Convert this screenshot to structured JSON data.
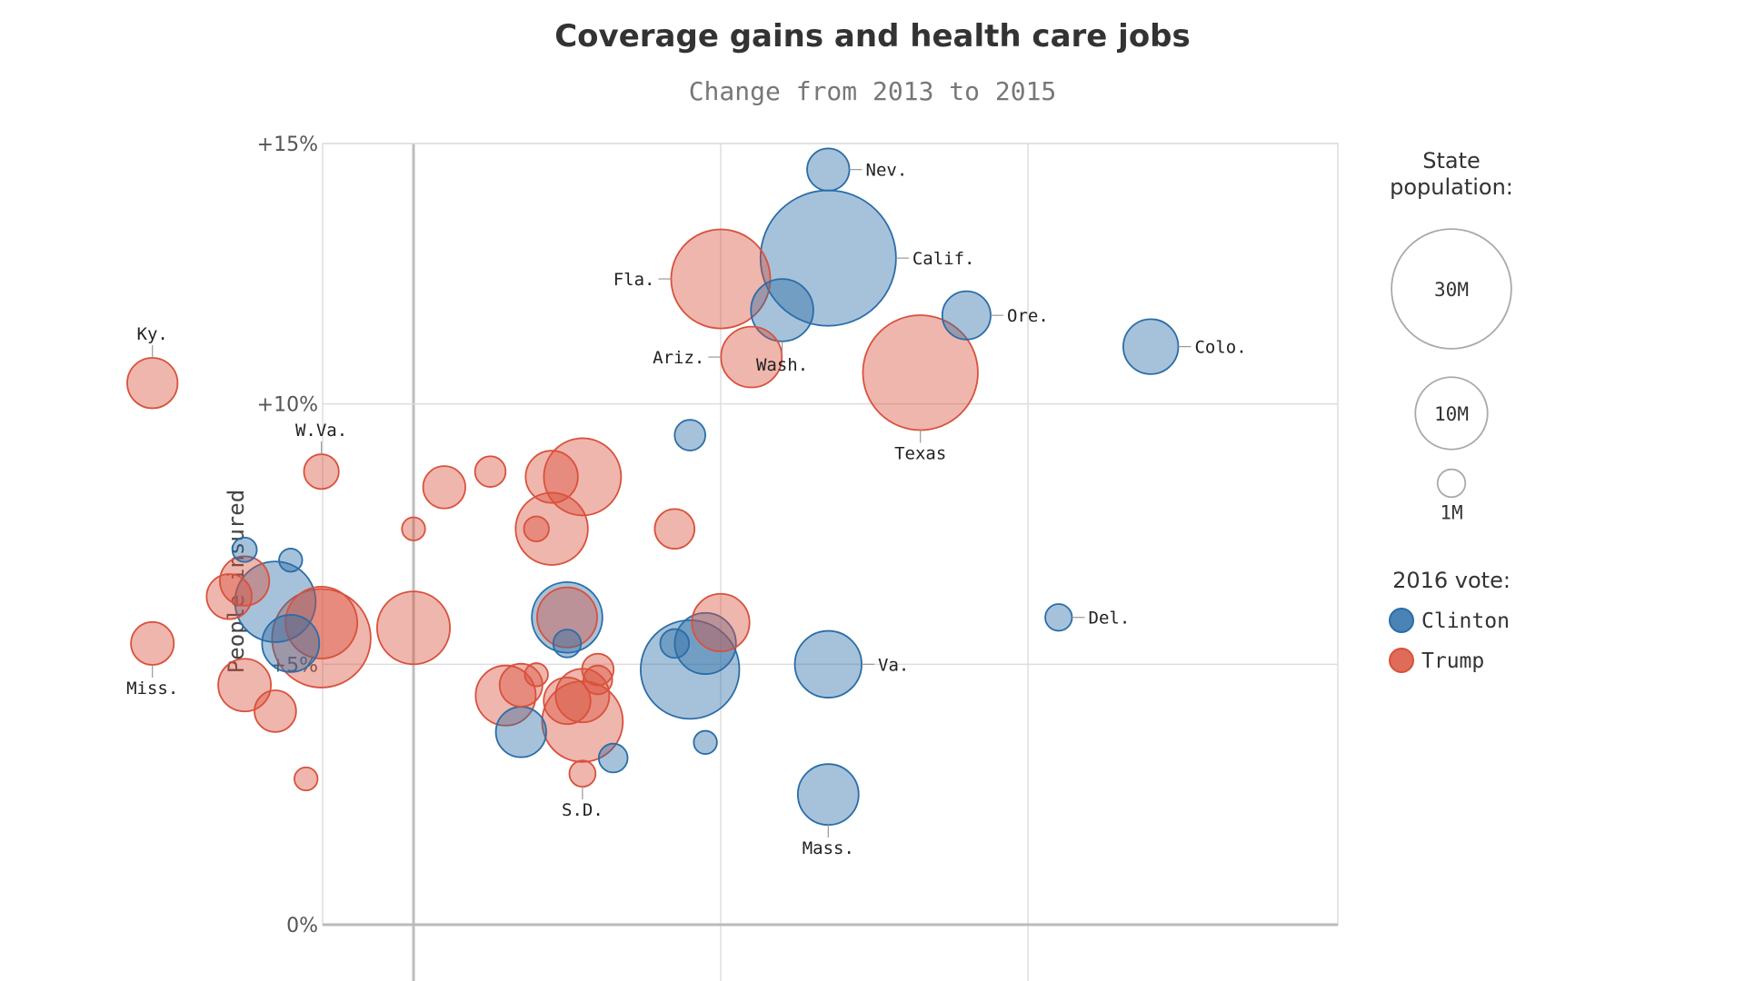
{
  "chart_data": {
    "type": "scatter",
    "title": "Coverage gains and health care jobs",
    "subtitle": "Change from 2013 to 2015",
    "xlabel": "",
    "ylabel": "People insured",
    "ylim": [
      0,
      15
    ],
    "y_ticks": [
      {
        "value": 0,
        "label": "0%"
      },
      {
        "value": 5,
        "label": "+5%"
      },
      {
        "value": 10,
        "label": "+10%"
      },
      {
        "value": 15,
        "label": "+15%"
      }
    ],
    "grid": true,
    "colors": {
      "Clinton": "#2a6da8",
      "Trump": "#d9513c"
    },
    "legend": {
      "size_title_line1": "State",
      "size_title_line2": "population:",
      "sizes": [
        {
          "label": "30M",
          "pop": 30
        },
        {
          "label": "10M",
          "pop": 10
        },
        {
          "label": "1M",
          "pop": 1
        }
      ],
      "vote_title": "2016 vote:",
      "vote_items": [
        {
          "label": "Clinton",
          "vote": "Clinton"
        },
        {
          "label": "Trump",
          "vote": "Trump"
        }
      ]
    },
    "points": [
      {
        "x": 1.35,
        "y": 14.5,
        "pop": 2.9,
        "vote": "Clinton",
        "label": "Nev."
      },
      {
        "x": 1.35,
        "y": 12.8,
        "pop": 39,
        "vote": "Clinton",
        "label": "Calif."
      },
      {
        "x": 1.0,
        "y": 12.4,
        "pop": 20,
        "vote": "Trump",
        "label": "Fla."
      },
      {
        "x": 1.2,
        "y": 11.8,
        "pop": 7.2,
        "vote": "Clinton",
        "label": "Wash."
      },
      {
        "x": 1.1,
        "y": 10.9,
        "pop": 6.8,
        "vote": "Trump",
        "label": "Ariz."
      },
      {
        "x": 1.8,
        "y": 11.7,
        "pop": 4.0,
        "vote": "Clinton",
        "label": "Ore."
      },
      {
        "x": 1.65,
        "y": 10.6,
        "pop": 27.5,
        "vote": "Trump",
        "label": "Texas"
      },
      {
        "x": 2.4,
        "y": 11.1,
        "pop": 5.4,
        "vote": "Clinton",
        "label": "Colo."
      },
      {
        "x": -0.85,
        "y": 10.4,
        "pop": 4.4,
        "vote": "Trump",
        "label": "Ky."
      },
      {
        "x": -0.3,
        "y": 8.7,
        "pop": 1.8,
        "vote": "Trump",
        "label": "W.Va."
      },
      {
        "x": 2.1,
        "y": 5.9,
        "pop": 0.9,
        "vote": "Clinton",
        "label": "Del."
      },
      {
        "x": 1.35,
        "y": 5.0,
        "pop": 8.4,
        "vote": "Clinton",
        "label": "Va."
      },
      {
        "x": 1.35,
        "y": 2.5,
        "pop": 6.8,
        "vote": "Clinton",
        "label": "Mass."
      },
      {
        "x": -0.85,
        "y": 5.4,
        "pop": 3.0,
        "vote": "Trump",
        "label": "Miss."
      },
      {
        "x": 0.55,
        "y": 2.9,
        "pop": 0.85,
        "vote": "Trump",
        "label": "S.D."
      },
      {
        "x": 0.9,
        "y": 9.4,
        "pop": 1.3,
        "vote": "Clinton",
        "label": ""
      },
      {
        "x": 0.1,
        "y": 8.4,
        "pop": 2.9,
        "vote": "Trump",
        "label": ""
      },
      {
        "x": 0.45,
        "y": 8.6,
        "pop": 4.8,
        "vote": "Trump",
        "label": ""
      },
      {
        "x": 0.55,
        "y": 8.6,
        "pop": 11.6,
        "vote": "Trump",
        "label": ""
      },
      {
        "x": 0.25,
        "y": 8.7,
        "pop": 1.3,
        "vote": "Trump",
        "label": ""
      },
      {
        "x": 0.45,
        "y": 7.6,
        "pop": 10.0,
        "vote": "Trump",
        "label": ""
      },
      {
        "x": 0.4,
        "y": 7.6,
        "pop": 0.75,
        "vote": "Trump",
        "label": ""
      },
      {
        "x": 0.85,
        "y": 7.6,
        "pop": 2.5,
        "vote": "Trump",
        "label": ""
      },
      {
        "x": 0.0,
        "y": 7.6,
        "pop": 0.6,
        "vote": "Trump",
        "label": ""
      },
      {
        "x": -0.55,
        "y": 7.2,
        "pop": 0.7,
        "vote": "Clinton",
        "label": ""
      },
      {
        "x": -0.4,
        "y": 7.0,
        "pop": 0.6,
        "vote": "Clinton",
        "label": ""
      },
      {
        "x": -0.55,
        "y": 6.6,
        "pop": 4.2,
        "vote": "Trump",
        "label": ""
      },
      {
        "x": -0.45,
        "y": 6.2,
        "pop": 12.8,
        "vote": "Clinton",
        "label": ""
      },
      {
        "x": -0.6,
        "y": 6.3,
        "pop": 3.4,
        "vote": "Trump",
        "label": ""
      },
      {
        "x": -0.3,
        "y": 5.8,
        "pop": 9.9,
        "vote": "Trump",
        "label": ""
      },
      {
        "x": -0.3,
        "y": 5.5,
        "pop": 19.8,
        "vote": "Trump",
        "label": ""
      },
      {
        "x": 0.0,
        "y": 5.7,
        "pop": 10.2,
        "vote": "Trump",
        "label": ""
      },
      {
        "x": -0.4,
        "y": 5.4,
        "pop": 5.9,
        "vote": "Clinton",
        "label": ""
      },
      {
        "x": 0.5,
        "y": 5.9,
        "pop": 9.5,
        "vote": "Clinton",
        "label": ""
      },
      {
        "x": 0.5,
        "y": 5.9,
        "pop": 6.6,
        "vote": "Trump",
        "label": ""
      },
      {
        "x": 0.5,
        "y": 5.4,
        "pop": 1.0,
        "vote": "Clinton",
        "label": ""
      },
      {
        "x": 1.0,
        "y": 5.8,
        "pop": 6.0,
        "vote": "Trump",
        "label": ""
      },
      {
        "x": 0.95,
        "y": 5.4,
        "pop": 6.9,
        "vote": "Clinton",
        "label": ""
      },
      {
        "x": 0.85,
        "y": 5.4,
        "pop": 1.1,
        "vote": "Clinton",
        "label": ""
      },
      {
        "x": 0.9,
        "y": 4.9,
        "pop": 19.8,
        "vote": "Clinton",
        "label": ""
      },
      {
        "x": 0.6,
        "y": 4.9,
        "pop": 1.4,
        "vote": "Trump",
        "label": ""
      },
      {
        "x": -0.55,
        "y": 4.6,
        "pop": 4.9,
        "vote": "Trump",
        "label": ""
      },
      {
        "x": -0.45,
        "y": 4.1,
        "pop": 2.8,
        "vote": "Trump",
        "label": ""
      },
      {
        "x": 0.3,
        "y": 4.4,
        "pop": 6.6,
        "vote": "Trump",
        "label": ""
      },
      {
        "x": 0.35,
        "y": 4.6,
        "pop": 3.0,
        "vote": "Trump",
        "label": ""
      },
      {
        "x": 0.5,
        "y": 4.3,
        "pop": 3.7,
        "vote": "Trump",
        "label": ""
      },
      {
        "x": 0.55,
        "y": 3.9,
        "pop": 12.8,
        "vote": "Trump",
        "label": ""
      },
      {
        "x": 0.35,
        "y": 3.7,
        "pop": 4.4,
        "vote": "Clinton",
        "label": ""
      },
      {
        "x": 0.55,
        "y": 4.4,
        "pop": 5.1,
        "vote": "Trump",
        "label": ""
      },
      {
        "x": 0.6,
        "y": 4.7,
        "pop": 1.1,
        "vote": "Trump",
        "label": ""
      },
      {
        "x": 0.4,
        "y": 4.8,
        "pop": 0.6,
        "vote": "Trump",
        "label": ""
      },
      {
        "x": 0.65,
        "y": 3.2,
        "pop": 1.1,
        "vote": "Clinton",
        "label": ""
      },
      {
        "x": 0.95,
        "y": 3.5,
        "pop": 0.6,
        "vote": "Clinton",
        "label": ""
      },
      {
        "x": -0.35,
        "y": 2.8,
        "pop": 0.6,
        "vote": "Trump",
        "label": ""
      }
    ]
  }
}
